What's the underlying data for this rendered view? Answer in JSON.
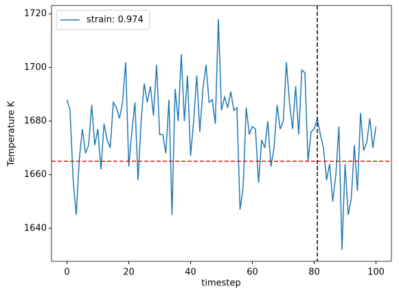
{
  "chart_data": {
    "type": "line",
    "xlabel": "timestep",
    "ylabel": "Temperature K",
    "x": [
      0,
      1,
      2,
      3,
      4,
      5,
      6,
      7,
      8,
      9,
      10,
      11,
      12,
      13,
      14,
      15,
      16,
      17,
      18,
      19,
      20,
      21,
      22,
      23,
      24,
      25,
      26,
      27,
      28,
      29,
      30,
      31,
      32,
      33,
      34,
      35,
      36,
      37,
      38,
      39,
      40,
      41,
      42,
      43,
      44,
      45,
      46,
      47,
      48,
      49,
      50,
      51,
      52,
      53,
      54,
      55,
      56,
      57,
      58,
      59,
      60,
      61,
      62,
      63,
      64,
      65,
      66,
      67,
      68,
      69,
      70,
      71,
      72,
      73,
      74,
      75,
      76,
      77,
      78,
      79,
      80,
      81,
      82,
      83,
      84,
      85,
      86,
      87,
      88,
      89,
      90,
      91,
      92,
      93,
      94,
      95,
      96,
      97,
      98,
      99,
      100
    ],
    "series": [
      {
        "name": "strain: 0.974",
        "color": "#1f77b4",
        "values": [
          1688,
          1684,
          1658,
          1645,
          1666,
          1677,
          1668,
          1671,
          1686,
          1671,
          1677,
          1662,
          1679,
          1673,
          1670,
          1687,
          1685,
          1681,
          1687,
          1702,
          1663,
          1676,
          1687,
          1658,
          1680,
          1694,
          1687,
          1693,
          1682,
          1701,
          1675,
          1675,
          1668,
          1688,
          1645,
          1692,
          1680,
          1705,
          1680,
          1697,
          1667,
          1680,
          1697,
          1676,
          1692,
          1701,
          1687,
          1688,
          1679,
          1718,
          1684,
          1689,
          1685,
          1691,
          1684,
          1685,
          1647,
          1655,
          1685,
          1675,
          1678,
          1677,
          1657,
          1673,
          1670,
          1680,
          1663,
          1670,
          1686,
          1677,
          1680,
          1702,
          1687,
          1677,
          1693,
          1675,
          1699,
          1698,
          1665,
          1676,
          1677,
          1681,
          1675,
          1670,
          1658,
          1664,
          1650,
          1660,
          1678,
          1632,
          1664,
          1645,
          1651,
          1671,
          1654,
          1683,
          1669,
          1672,
          1681,
          1670,
          1678
        ]
      }
    ],
    "hlines": [
      {
        "value": 1665,
        "color": "#ff0000"
      }
    ],
    "vlines": [
      {
        "value": 81,
        "color": "#000000"
      }
    ],
    "xlim": [
      -5,
      105
    ],
    "xticks": [
      0,
      20,
      40,
      60,
      80,
      100
    ],
    "ylim": [
      1627.7,
      1723.1
    ],
    "yticks": [
      1640,
      1660,
      1680,
      1700,
      1720
    ],
    "legend": "upper left"
  }
}
